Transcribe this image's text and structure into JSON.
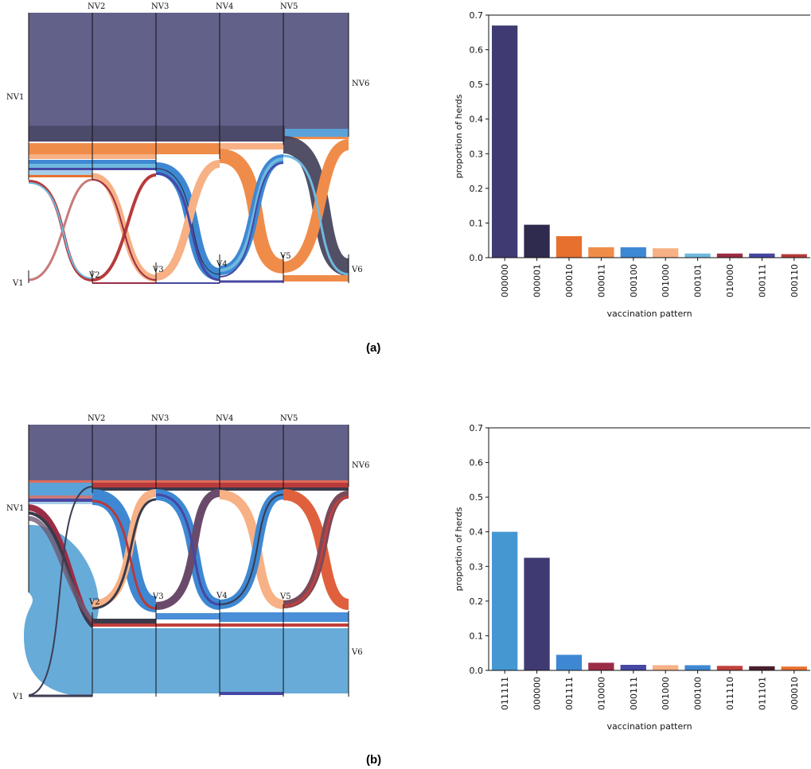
{
  "figure": {
    "panels": [
      {
        "caption": "(a)",
        "sankey": {
          "top_nodes": [
            "NV1",
            "NV2",
            "NV3",
            "NV4",
            "NV5",
            "NV6"
          ],
          "bottom_nodes": [
            "V1",
            "V2",
            "V3",
            "V4",
            "V5",
            "V6"
          ]
        }
      },
      {
        "caption": "(b)",
        "sankey": {
          "top_nodes": [
            "NV1",
            "NV2",
            "NV3",
            "NV4",
            "NV5",
            "NV6"
          ],
          "bottom_nodes": [
            "V1",
            "V2",
            "V3",
            "V4",
            "V5",
            "V6"
          ]
        }
      }
    ]
  },
  "chart_data": [
    {
      "type": "bar",
      "categories": [
        "000000",
        "000001",
        "000010",
        "000011",
        "000100",
        "001000",
        "000101",
        "010000",
        "000111",
        "000110"
      ],
      "values": [
        0.67,
        0.095,
        0.062,
        0.03,
        0.03,
        0.027,
        0.012,
        0.012,
        0.012,
        0.01
      ],
      "colors": [
        "#3f3b72",
        "#2f2b4e",
        "#e8702e",
        "#f08c4a",
        "#3e88d3",
        "#f7b185",
        "#6fb9df",
        "#9b2c45",
        "#4647a3",
        "#b83a3a"
      ],
      "xlabel": "vaccination pattern",
      "ylabel": "proportion of herds",
      "ylim": [
        0,
        0.7
      ],
      "yticks": [
        "0.0",
        "0.1",
        "0.2",
        "0.3",
        "0.4",
        "0.5",
        "0.6",
        "0.7"
      ]
    },
    {
      "type": "bar",
      "categories": [
        "011111",
        "000000",
        "001111",
        "010000",
        "000111",
        "001000",
        "000100",
        "011110",
        "011101",
        "000010"
      ],
      "values": [
        0.4,
        0.325,
        0.045,
        0.022,
        0.016,
        0.015,
        0.015,
        0.013,
        0.012,
        0.011
      ],
      "colors": [
        "#4597d2",
        "#3f3b72",
        "#3e88d3",
        "#9b2c45",
        "#4647a3",
        "#f7b185",
        "#3e88d3",
        "#c0403c",
        "#4a1f2e",
        "#e8702e"
      ],
      "xlabel": "vaccination pattern",
      "ylabel": "proportion of herds",
      "ylim": [
        0,
        0.7
      ],
      "yticks": [
        "0.0",
        "0.1",
        "0.2",
        "0.3",
        "0.4",
        "0.5",
        "0.6",
        "0.7"
      ]
    }
  ]
}
